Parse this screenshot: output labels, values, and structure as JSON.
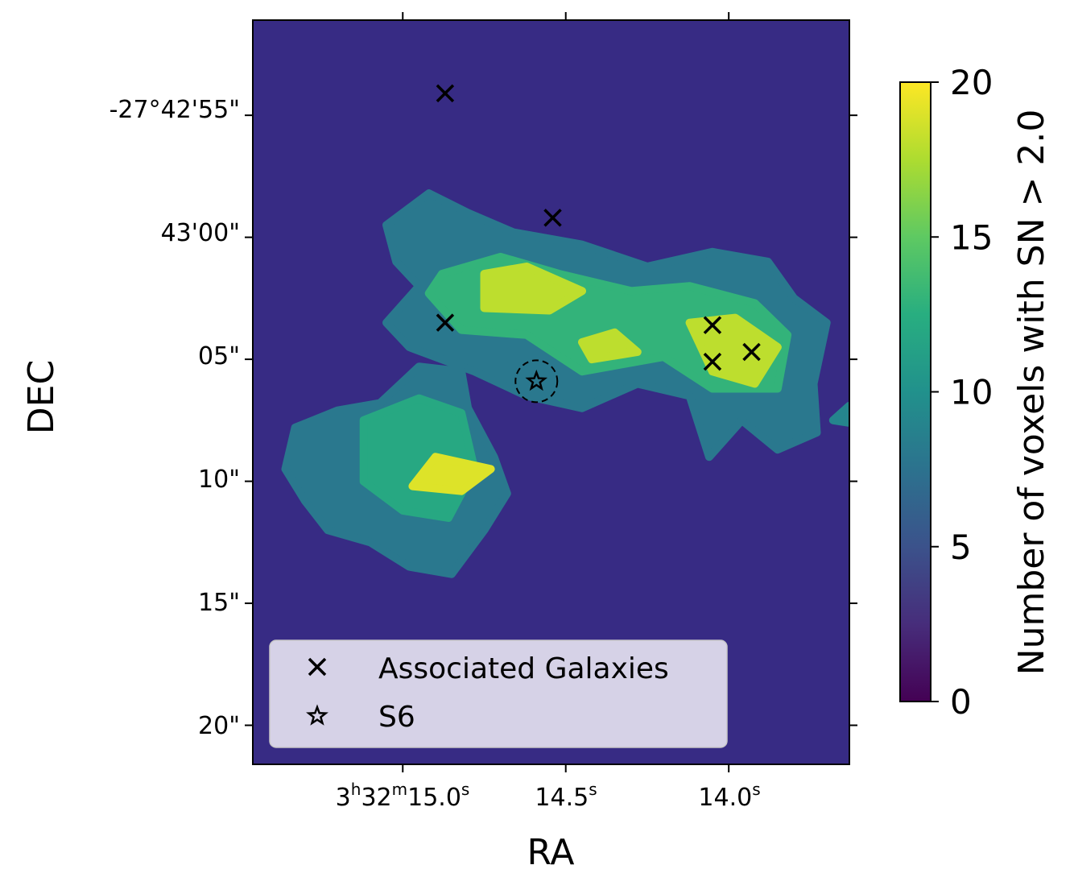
{
  "chart_data": {
    "type": "heatmap",
    "title": "",
    "xlabel": "RA",
    "ylabel": "DEC",
    "x_ticks": [
      {
        "value_s": 15.0,
        "label": "3h32m15.0s",
        "parts": {
          "h": "3",
          "m": "32",
          "s": "15.0"
        }
      },
      {
        "value_s": 14.5,
        "label": "14.5s"
      },
      {
        "value_s": 14.0,
        "label": "14.0s"
      }
    ],
    "x_tick_text": {
      "hour_prefix": "3",
      "h": "h",
      "min": "32",
      "m": "m",
      "first_sec": "15.0",
      "s": "s",
      "second": "14.5",
      "third": "14.0"
    },
    "y_ticks": [
      {
        "value_arcsec": -55,
        "label": "-27°42'55\""
      },
      {
        "value_arcsec": -60,
        "label": "43'00\""
      },
      {
        "value_arcsec": -65,
        "label": "05\""
      },
      {
        "value_arcsec": -70,
        "label": "10\""
      },
      {
        "value_arcsec": -75,
        "label": "15\""
      },
      {
        "value_arcsec": -80,
        "label": "20\""
      }
    ],
    "x_range_s": [
      15.46,
      13.63
    ],
    "y_range_arcsec": [
      -51.1,
      -81.6
    ],
    "colorbar": {
      "label": "Number of voxels with SN > 2.0",
      "range": [
        0,
        20
      ],
      "ticks": [
        "0",
        "5",
        "10",
        "15",
        "20"
      ],
      "colormap": "viridis"
    },
    "background_value": 3,
    "regions": [
      {
        "name": "upper-right-blob",
        "value": 8,
        "points_arcsec": [
          [
            15.05,
            -59.5
          ],
          [
            14.92,
            -58.2
          ],
          [
            14.8,
            -59.0
          ],
          [
            14.66,
            -59.8
          ],
          [
            14.45,
            -60.3
          ],
          [
            14.25,
            -61.2
          ],
          [
            14.05,
            -60.6
          ],
          [
            13.88,
            -61.0
          ],
          [
            13.8,
            -62.5
          ],
          [
            13.7,
            -63.5
          ],
          [
            13.74,
            -66.0
          ],
          [
            13.73,
            -68.0
          ],
          [
            13.85,
            -68.7
          ],
          [
            13.96,
            -67.5
          ],
          [
            14.06,
            -69.0
          ],
          [
            14.12,
            -66.5
          ],
          [
            14.28,
            -66.0
          ],
          [
            14.45,
            -67.0
          ],
          [
            14.62,
            -66.5
          ],
          [
            14.78,
            -65.5
          ],
          [
            14.98,
            -64.5
          ],
          [
            15.05,
            -63.5
          ],
          [
            14.95,
            -62.0
          ],
          [
            15.02,
            -61.0
          ]
        ]
      },
      {
        "name": "lower-left-blob",
        "value": 8,
        "points_arcsec": [
          [
            15.33,
            -67.8
          ],
          [
            15.2,
            -67.1
          ],
          [
            15.07,
            -66.8
          ],
          [
            14.95,
            -65.3
          ],
          [
            14.82,
            -65.5
          ],
          [
            14.8,
            -67.0
          ],
          [
            14.72,
            -69.0
          ],
          [
            14.68,
            -70.5
          ],
          [
            14.75,
            -72.0
          ],
          [
            14.85,
            -73.8
          ],
          [
            14.98,
            -73.5
          ],
          [
            15.1,
            -72.5
          ],
          [
            15.23,
            -72.0
          ],
          [
            15.3,
            -70.8
          ],
          [
            15.36,
            -69.5
          ]
        ]
      },
      {
        "name": "far-right-tail",
        "value": 9,
        "points_arcsec": [
          [
            13.68,
            -67.5
          ],
          [
            13.63,
            -66.9
          ],
          [
            13.63,
            -67.6
          ]
        ]
      },
      {
        "name": "upper-green",
        "value": 13,
        "points_arcsec": [
          [
            14.88,
            -61.5
          ],
          [
            14.7,
            -60.8
          ],
          [
            14.52,
            -61.5
          ],
          [
            14.3,
            -62.2
          ],
          [
            14.12,
            -62.0
          ],
          [
            13.92,
            -62.7
          ],
          [
            13.82,
            -64.0
          ],
          [
            13.85,
            -66.2
          ],
          [
            14.05,
            -66.2
          ],
          [
            14.2,
            -64.9
          ],
          [
            14.45,
            -65.5
          ],
          [
            14.62,
            -64.0
          ],
          [
            14.82,
            -63.8
          ],
          [
            14.92,
            -62.3
          ]
        ]
      },
      {
        "name": "lower-green",
        "value": 12,
        "points_arcsec": [
          [
            15.12,
            -67.5
          ],
          [
            14.95,
            -66.6
          ],
          [
            14.82,
            -67.2
          ],
          [
            14.78,
            -69.5
          ],
          [
            14.86,
            -71.5
          ],
          [
            15.0,
            -71.2
          ],
          [
            15.12,
            -70.0
          ]
        ]
      },
      {
        "name": "upper-hotspot",
        "value": 18,
        "points_arcsec": [
          [
            14.75,
            -61.5
          ],
          [
            14.62,
            -61.2
          ],
          [
            14.45,
            -62.2
          ],
          [
            14.55,
            -63.0
          ],
          [
            14.75,
            -62.9
          ]
        ]
      },
      {
        "name": "middle-hotspot",
        "value": 18,
        "points_arcsec": [
          [
            14.45,
            -64.3
          ],
          [
            14.35,
            -63.9
          ],
          [
            14.28,
            -64.7
          ],
          [
            14.42,
            -65.0
          ]
        ]
      },
      {
        "name": "right-hotspot",
        "value": 18,
        "points_arcsec": [
          [
            14.12,
            -63.5
          ],
          [
            13.98,
            -63.3
          ],
          [
            13.85,
            -64.5
          ],
          [
            13.92,
            -66.0
          ],
          [
            14.05,
            -65.5
          ]
        ]
      },
      {
        "name": "lower-hotspot",
        "value": 19,
        "points_arcsec": [
          [
            14.9,
            -69.0
          ],
          [
            14.73,
            -69.5
          ],
          [
            14.82,
            -70.4
          ],
          [
            14.97,
            -70.2
          ]
        ]
      }
    ],
    "series": [
      {
        "name": "Associated Galaxies",
        "marker": "x",
        "points": [
          {
            "ra_s": 14.87,
            "dec_arcsec": -54.1
          },
          {
            "ra_s": 14.54,
            "dec_arcsec": -59.2
          },
          {
            "ra_s": 14.87,
            "dec_arcsec": -63.5
          },
          {
            "ra_s": 14.05,
            "dec_arcsec": -63.6
          },
          {
            "ra_s": 14.05,
            "dec_arcsec": -65.1
          },
          {
            "ra_s": 13.93,
            "dec_arcsec": -64.7
          }
        ]
      },
      {
        "name": "S6",
        "marker": "star",
        "points": [
          {
            "ra_s": 14.59,
            "dec_arcsec": -65.9
          }
        ]
      }
    ],
    "legend": {
      "location": "lower-left"
    },
    "colors": {
      "background": "#372b84",
      "axis": "#000000"
    }
  }
}
